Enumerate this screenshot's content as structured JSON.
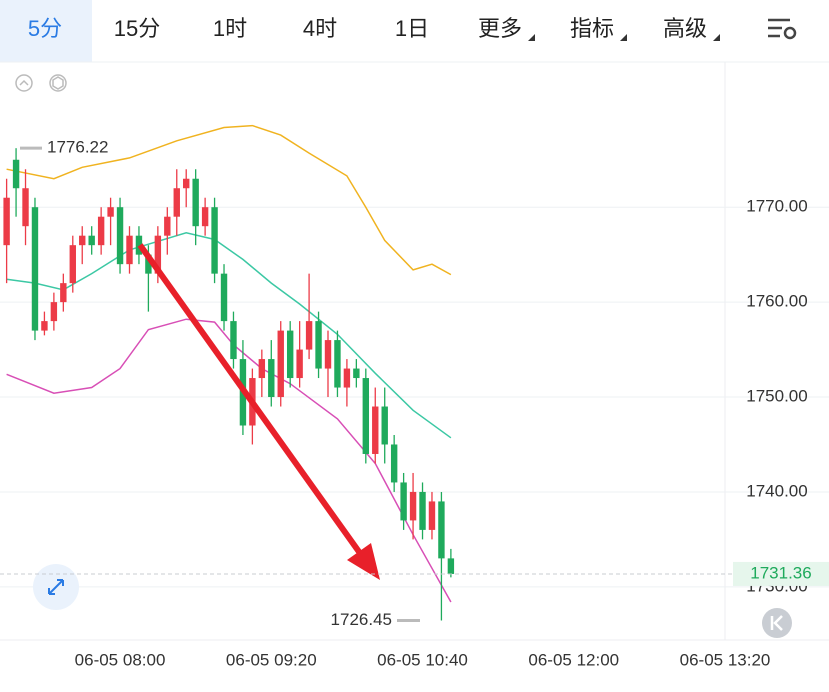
{
  "toolbar": {
    "tabs": [
      "5分",
      "15分",
      "1时",
      "4时",
      "1日",
      "更多",
      "指标",
      "高级"
    ]
  },
  "chart_data": {
    "type": "candlestick",
    "open": [
      1766,
      1775,
      1768,
      1770,
      1757,
      1758,
      1760,
      1762,
      1766,
      1767,
      1766,
      1769,
      1770,
      1764,
      1767,
      1765,
      1763,
      1767,
      1769,
      1772,
      1773,
      1768,
      1770,
      1763,
      1758,
      1754,
      1747,
      1752,
      1754,
      1750,
      1757,
      1752,
      1755,
      1758,
      1753,
      1756,
      1751,
      1753,
      1752,
      1744,
      1749,
      1745,
      1741,
      1737,
      1740,
      1736,
      1739,
      1733
    ],
    "high": [
      1773,
      1776.22,
      1774,
      1771,
      1759,
      1761,
      1763,
      1767,
      1768,
      1768,
      1770,
      1771,
      1771,
      1768,
      1768,
      1766,
      1768,
      1770,
      1774,
      1774,
      1774,
      1771,
      1771,
      1764,
      1759,
      1756,
      1753,
      1755,
      1756,
      1758,
      1758,
      1758,
      1763,
      1759,
      1757,
      1757,
      1754,
      1754,
      1753,
      1751,
      1751,
      1746,
      1742,
      1742,
      1741,
      1740,
      1740,
      1734
    ],
    "low": [
      1762,
      1769,
      1766,
      1756,
      1756.5,
      1757,
      1759,
      1761,
      1764,
      1765,
      1765,
      1766,
      1763,
      1763,
      1764,
      1759,
      1762,
      1765,
      1767,
      1770,
      1766,
      1767,
      1762,
      1757,
      1753,
      1746,
      1745,
      1750,
      1749,
      1749,
      1751,
      1751,
      1754,
      1752,
      1750,
      1750,
      1749,
      1751,
      1743,
      1743,
      1743,
      1740,
      1736,
      1735,
      1735,
      1735,
      1726.45,
      1731
    ],
    "close": [
      1771,
      1772,
      1772,
      1757,
      1758,
      1760,
      1762,
      1766,
      1767,
      1766,
      1769,
      1770,
      1764,
      1767,
      1765,
      1763,
      1767,
      1769,
      1772,
      1773,
      1768,
      1770,
      1763,
      1758,
      1754,
      1747,
      1752,
      1754,
      1750,
      1757,
      1752,
      1755,
      1758,
      1753,
      1756,
      1751,
      1753,
      1752,
      1744,
      1749,
      1745,
      1741,
      1737,
      1740,
      1736,
      1739,
      1733,
      1731.36
    ],
    "up_color": "#ec3b47",
    "down_color": "#1faa5c",
    "series": [
      {
        "color": "#f0b320",
        "x": [
          0,
          5,
          8,
          13,
          18,
          23,
          26,
          29,
          32,
          36,
          38,
          40,
          43,
          45,
          47
        ],
        "values": [
          1774,
          1773,
          1774.2,
          1775.2,
          1777,
          1778.4,
          1778.6,
          1777.6,
          1775.7,
          1773.3,
          1770,
          1766.5,
          1763.4,
          1764,
          1762.9
        ]
      },
      {
        "color": "#3cc8a4",
        "x": [
          0,
          3,
          6,
          9,
          13,
          19,
          22,
          25,
          28,
          31,
          35,
          39,
          43,
          47
        ],
        "values": [
          1762.4,
          1762,
          1761.3,
          1763,
          1765.5,
          1767.3,
          1766.6,
          1764.5,
          1762,
          1759.8,
          1756.6,
          1752.5,
          1748.6,
          1745.7
        ]
      },
      {
        "color": "#d84fb6",
        "x": [
          0,
          5,
          9,
          12,
          15,
          19,
          22,
          24,
          27,
          30,
          35,
          39,
          43,
          47
        ],
        "values": [
          1752.4,
          1750.4,
          1751,
          1753,
          1757.1,
          1758.2,
          1757.9,
          1755.5,
          1753,
          1751.4,
          1747.7,
          1743,
          1735.5,
          1728.4
        ]
      }
    ],
    "ylim": [
      1724.4,
      1785.3
    ],
    "yticks": [
      {
        "value": 1730,
        "label": "1730.00"
      },
      {
        "value": 1740,
        "label": "1740.00"
      },
      {
        "value": 1750,
        "label": "1750.00"
      },
      {
        "value": 1760,
        "label": "1760.00"
      },
      {
        "value": 1770,
        "label": "1770.00"
      }
    ],
    "xlim": [
      -0.7,
      76
    ],
    "xticks": [
      {
        "value": 12,
        "label": "06-05 08:00"
      },
      {
        "value": 28,
        "label": "06-05 09:20"
      },
      {
        "value": 44,
        "label": "06-05 10:40"
      },
      {
        "value": 60,
        "label": "06-05 12:00"
      },
      {
        "value": 76,
        "label": "06-05 13:20"
      }
    ],
    "high_label": 1776.22,
    "low_label": 1726.45,
    "last_price": 1731.36
  }
}
